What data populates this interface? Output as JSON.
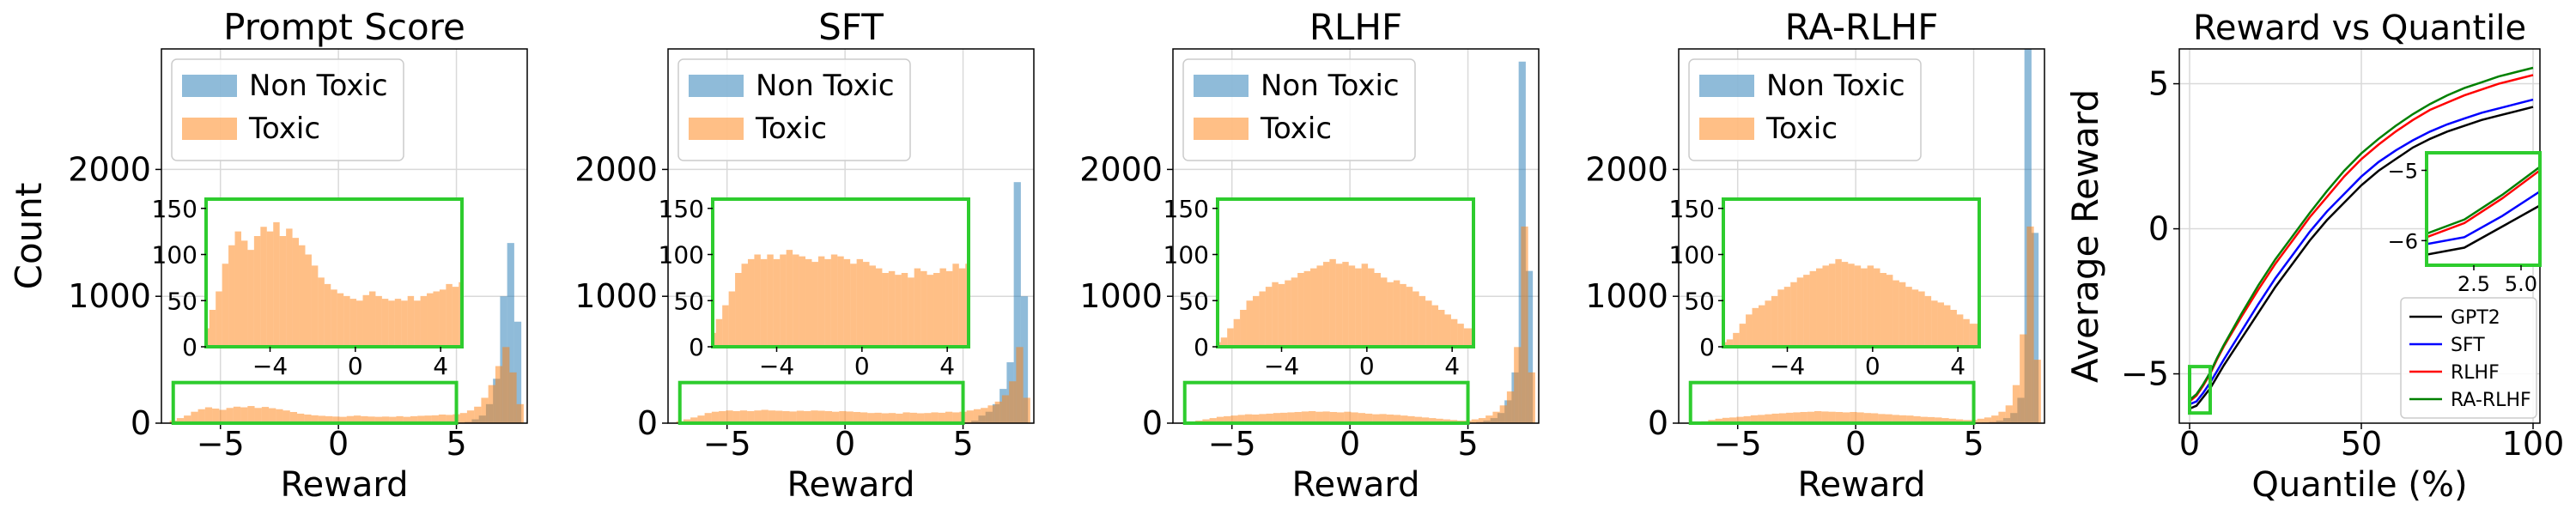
{
  "chart_data": [
    {
      "type": "histogram",
      "title": "Prompt Score",
      "xlabel": "Reward",
      "ylabel": "Count",
      "xlim": [
        -7.5,
        8
      ],
      "ylim": [
        0,
        2950
      ],
      "xticks": [
        "−5",
        "0",
        "5"
      ],
      "yticks": [
        "0",
        "1000",
        "2000"
      ],
      "legend": {
        "position": "top-left",
        "entries": [
          "Non Toxic",
          "Toxic"
        ]
      },
      "bin_width": 0.3,
      "series": [
        {
          "name": "Non Toxic",
          "color": "#1f77b4",
          "x": [
            5.5,
            5.8,
            6.1,
            6.4,
            6.7,
            7.0,
            7.3,
            7.6
          ],
          "values": [
            10,
            30,
            60,
            150,
            350,
            1000,
            1420,
            800
          ]
        },
        {
          "name": "Toxic",
          "color": "#ff7f0e",
          "x": [
            -7.0,
            -6.7,
            -6.4,
            -6.1,
            -5.8,
            -5.5,
            -5.2,
            -4.9,
            -4.6,
            -4.3,
            -4.0,
            -3.7,
            -3.4,
            -3.1,
            -2.8,
            -2.5,
            -2.2,
            -1.9,
            -1.6,
            -1.3,
            -1.0,
            -0.7,
            -0.4,
            -0.1,
            0.2,
            0.5,
            0.8,
            1.1,
            1.4,
            1.7,
            2.0,
            2.3,
            2.6,
            2.9,
            3.2,
            3.5,
            3.8,
            4.1,
            4.4,
            4.7,
            5.0,
            5.3,
            5.6,
            5.9,
            6.2,
            6.5,
            6.8,
            7.1,
            7.4,
            7.7
          ],
          "values": [
            20,
            40,
            60,
            90,
            110,
            125,
            115,
            105,
            120,
            130,
            125,
            135,
            120,
            128,
            118,
            110,
            100,
            88,
            75,
            68,
            62,
            58,
            55,
            52,
            50,
            56,
            60,
            55,
            52,
            50,
            52,
            50,
            55,
            50,
            55,
            58,
            60,
            62,
            68,
            65,
            70,
            80,
            100,
            130,
            200,
            300,
            450,
            600,
            400,
            150
          ]
        }
      ],
      "inset": {
        "xlim": [
          -7,
          5
        ],
        "ylim": [
          0,
          160
        ],
        "xticks": [
          "−4",
          "0",
          "4"
        ],
        "yticks": [
          "0",
          "50",
          "100",
          "150"
        ]
      }
    },
    {
      "type": "histogram",
      "title": "SFT",
      "xlabel": "Reward",
      "ylabel": "",
      "xlim": [
        -7.5,
        8
      ],
      "ylim": [
        0,
        2950
      ],
      "xticks": [
        "−5",
        "0",
        "5"
      ],
      "yticks": [
        "0",
        "1000",
        "2000"
      ],
      "legend": {
        "position": "top-left",
        "entries": [
          "Non Toxic",
          "Toxic"
        ]
      },
      "bin_width": 0.3,
      "series": [
        {
          "name": "Non Toxic",
          "color": "#1f77b4",
          "x": [
            5.5,
            5.8,
            6.1,
            6.4,
            6.7,
            7.0,
            7.3,
            7.6
          ],
          "values": [
            20,
            60,
            90,
            150,
            270,
            480,
            1900,
            1000
          ]
        },
        {
          "name": "Toxic",
          "color": "#ff7f0e",
          "x": [
            -7.0,
            -6.7,
            -6.4,
            -6.1,
            -5.8,
            -5.5,
            -5.2,
            -4.9,
            -4.6,
            -4.3,
            -4.0,
            -3.7,
            -3.4,
            -3.1,
            -2.8,
            -2.5,
            -2.2,
            -1.9,
            -1.6,
            -1.3,
            -1.0,
            -0.7,
            -0.4,
            -0.1,
            0.2,
            0.5,
            0.8,
            1.1,
            1.4,
            1.7,
            2.0,
            2.3,
            2.6,
            2.9,
            3.2,
            3.5,
            3.8,
            4.1,
            4.4,
            4.7,
            5.0,
            5.3,
            5.6,
            5.9,
            6.2,
            6.5,
            6.8,
            7.1,
            7.4,
            7.7
          ],
          "values": [
            15,
            30,
            45,
            60,
            80,
            90,
            95,
            100,
            95,
            100,
            95,
            100,
            105,
            100,
            98,
            95,
            92,
            98,
            95,
            100,
            98,
            95,
            90,
            95,
            92,
            88,
            85,
            80,
            82,
            78,
            80,
            75,
            85,
            82,
            78,
            80,
            85,
            82,
            90,
            85,
            90,
            100,
            110,
            120,
            140,
            170,
            220,
            330,
            600,
            200
          ]
        }
      ],
      "inset": {
        "xlim": [
          -7,
          5
        ],
        "ylim": [
          0,
          160
        ],
        "xticks": [
          "−4",
          "0",
          "4"
        ],
        "yticks": [
          "0",
          "50",
          "100",
          "150"
        ]
      }
    },
    {
      "type": "histogram",
      "title": "RLHF",
      "xlabel": "Reward",
      "ylabel": "",
      "xlim": [
        -7.5,
        8
      ],
      "ylim": [
        0,
        2950
      ],
      "xticks": [
        "−5",
        "0",
        "5"
      ],
      "yticks": [
        "0",
        "1000",
        "2000"
      ],
      "legend": {
        "position": "top-left",
        "entries": [
          "Non Toxic",
          "Toxic"
        ]
      },
      "bin_width": 0.3,
      "series": [
        {
          "name": "Non Toxic",
          "color": "#1f77b4",
          "x": [
            5.5,
            5.8,
            6.1,
            6.4,
            6.7,
            7.0,
            7.3,
            7.6
          ],
          "values": [
            10,
            20,
            40,
            80,
            180,
            400,
            2850,
            1200
          ]
        },
        {
          "name": "Toxic",
          "color": "#ff7f0e",
          "x": [
            -7.0,
            -6.7,
            -6.4,
            -6.1,
            -5.8,
            -5.5,
            -5.2,
            -4.9,
            -4.6,
            -4.3,
            -4.0,
            -3.7,
            -3.4,
            -3.1,
            -2.8,
            -2.5,
            -2.2,
            -1.9,
            -1.6,
            -1.3,
            -1.0,
            -0.7,
            -0.4,
            -0.1,
            0.2,
            0.5,
            0.8,
            1.1,
            1.4,
            1.7,
            2.0,
            2.3,
            2.6,
            2.9,
            3.2,
            3.5,
            3.8,
            4.1,
            4.4,
            4.7,
            5.0,
            5.3,
            5.6,
            5.9,
            6.2,
            6.5,
            6.8,
            7.1,
            7.4,
            7.7
          ],
          "values": [
            5,
            10,
            20,
            30,
            40,
            50,
            55,
            60,
            65,
            70,
            68,
            72,
            75,
            80,
            82,
            85,
            88,
            92,
            95,
            90,
            92,
            88,
            85,
            90,
            85,
            80,
            75,
            70,
            72,
            68,
            65,
            60,
            55,
            50,
            45,
            40,
            35,
            30,
            25,
            20,
            20,
            30,
            40,
            60,
            90,
            140,
            250,
            600,
            1550,
            400
          ]
        }
      ],
      "inset": {
        "xlim": [
          -7,
          5
        ],
        "ylim": [
          0,
          160
        ],
        "xticks": [
          "−4",
          "0",
          "4"
        ],
        "yticks": [
          "0",
          "50",
          "100",
          "150"
        ]
      }
    },
    {
      "type": "histogram",
      "title": "RA-RLHF",
      "xlabel": "Reward",
      "ylabel": "",
      "xlim": [
        -7.5,
        8
      ],
      "ylim": [
        0,
        2950
      ],
      "xticks": [
        "−5",
        "0",
        "5"
      ],
      "yticks": [
        "0",
        "1000",
        "2000"
      ],
      "legend": {
        "position": "top-left",
        "entries": [
          "Non Toxic",
          "Toxic"
        ]
      },
      "bin_width": 0.3,
      "series": [
        {
          "name": "Non Toxic",
          "color": "#1f77b4",
          "x": [
            5.5,
            5.8,
            6.1,
            6.4,
            6.7,
            7.0,
            7.3,
            7.6
          ],
          "values": [
            5,
            10,
            20,
            40,
            80,
            200,
            2950,
            1500
          ]
        },
        {
          "name": "Toxic",
          "color": "#ff7f0e",
          "x": [
            -7.0,
            -6.7,
            -6.4,
            -6.1,
            -5.8,
            -5.5,
            -5.2,
            -4.9,
            -4.6,
            -4.3,
            -4.0,
            -3.7,
            -3.4,
            -3.1,
            -2.8,
            -2.5,
            -2.2,
            -1.9,
            -1.6,
            -1.3,
            -1.0,
            -0.7,
            -0.4,
            -0.1,
            0.2,
            0.5,
            0.8,
            1.1,
            1.4,
            1.7,
            2.0,
            2.3,
            2.6,
            2.9,
            3.2,
            3.5,
            3.8,
            4.1,
            4.4,
            4.7,
            5.0,
            5.3,
            5.6,
            5.9,
            6.2,
            6.5,
            6.8,
            7.1,
            7.4,
            7.7
          ],
          "values": [
            5,
            8,
            15,
            25,
            35,
            42,
            45,
            50,
            55,
            62,
            65,
            70,
            75,
            78,
            82,
            85,
            88,
            90,
            95,
            92,
            90,
            88,
            85,
            88,
            85,
            80,
            78,
            72,
            70,
            65,
            62,
            60,
            55,
            50,
            48,
            45,
            40,
            35,
            30,
            25,
            25,
            35,
            45,
            60,
            90,
            140,
            300,
            700,
            1550,
            500
          ]
        }
      ],
      "inset": {
        "xlim": [
          -7,
          5
        ],
        "ylim": [
          0,
          160
        ],
        "xticks": [
          "−4",
          "0",
          "4"
        ],
        "yticks": [
          "0",
          "50",
          "100",
          "150"
        ]
      }
    },
    {
      "type": "line",
      "title": "Reward vs Quantile",
      "xlabel": "Quantile (%)",
      "ylabel": "Average Reward",
      "xlim": [
        -3,
        102
      ],
      "ylim": [
        -6.7,
        6.2
      ],
      "xticks": [
        "0",
        "50",
        "100"
      ],
      "yticks": [
        "−5",
        "0",
        "5"
      ],
      "legend": {
        "position": "bottom-right",
        "entries": [
          "GPT2",
          "SFT",
          "RLHF",
          "RA-RLHF"
        ]
      },
      "x": [
        0,
        2,
        4,
        6,
        8,
        10,
        15,
        20,
        25,
        30,
        35,
        40,
        45,
        50,
        55,
        60,
        65,
        70,
        75,
        80,
        85,
        90,
        95,
        100
      ],
      "series": [
        {
          "name": "GPT2",
          "color": "#000000",
          "values": [
            -6.2,
            -6.1,
            -5.8,
            -5.5,
            -5.1,
            -4.7,
            -3.8,
            -2.9,
            -2.0,
            -1.2,
            -0.4,
            0.3,
            0.9,
            1.5,
            2.0,
            2.4,
            2.8,
            3.1,
            3.35,
            3.55,
            3.75,
            3.9,
            4.05,
            4.2
          ]
        },
        {
          "name": "SFT",
          "color": "#0000ff",
          "values": [
            -6.05,
            -5.95,
            -5.65,
            -5.3,
            -4.9,
            -4.5,
            -3.55,
            -2.6,
            -1.7,
            -0.9,
            -0.1,
            0.6,
            1.2,
            1.8,
            2.3,
            2.7,
            3.05,
            3.35,
            3.6,
            3.8,
            4.0,
            4.15,
            4.3,
            4.45
          ]
        },
        {
          "name": "RLHF",
          "color": "#ff0000",
          "values": [
            -5.95,
            -5.75,
            -5.4,
            -5.0,
            -4.5,
            -4.05,
            -3.05,
            -2.1,
            -1.2,
            -0.4,
            0.4,
            1.1,
            1.8,
            2.4,
            2.9,
            3.35,
            3.75,
            4.1,
            4.35,
            4.6,
            4.8,
            5.0,
            5.15,
            5.3
          ]
        },
        {
          "name": "RA-RLHF",
          "color": "#008000",
          "values": [
            -5.9,
            -5.7,
            -5.35,
            -4.95,
            -4.45,
            -4.0,
            -2.95,
            -1.95,
            -1.05,
            -0.25,
            0.55,
            1.3,
            2.0,
            2.6,
            3.1,
            3.55,
            3.95,
            4.3,
            4.6,
            4.85,
            5.05,
            5.25,
            5.4,
            5.55
          ]
        }
      ],
      "inset": {
        "xlim": [
          0,
          6
        ],
        "ylim": [
          -6.35,
          -4.75
        ],
        "xticks": [
          "2.5",
          "5.0"
        ],
        "yticks": [
          "−6",
          "−5"
        ]
      }
    }
  ]
}
